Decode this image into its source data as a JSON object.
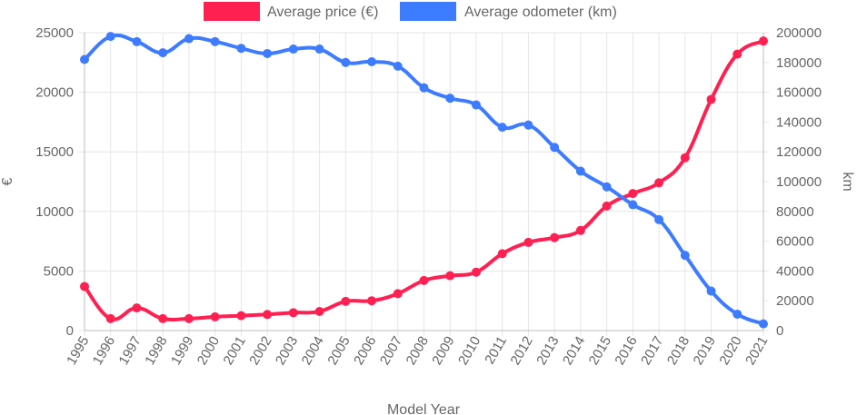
{
  "chart_data": {
    "type": "line",
    "title": "",
    "xlabel": "Model Year",
    "ylabel": "€",
    "y2label": "km",
    "categories": [
      "1995",
      "1996",
      "1997",
      "1998",
      "1999",
      "2000",
      "2001",
      "2002",
      "2003",
      "2004",
      "2005",
      "2006",
      "2007",
      "2008",
      "2009",
      "2010",
      "2011",
      "2012",
      "2013",
      "2014",
      "2015",
      "2016",
      "2017",
      "2018",
      "2019",
      "2020",
      "2021"
    ],
    "ylim": [
      0,
      25000
    ],
    "y2lim": [
      0,
      200000
    ],
    "yticks": [
      "0",
      "5000",
      "10000",
      "15000",
      "20000",
      "25000"
    ],
    "y2ticks": [
      "0",
      "20000",
      "40000",
      "60000",
      "80000",
      "100000",
      "120000",
      "140000",
      "160000",
      "180000",
      "200000"
    ],
    "legend_position": "top-center",
    "grid": true,
    "series": [
      {
        "name": "Average price (€)",
        "axis": "left",
        "color": "#ff2052",
        "values": [
          3700,
          1000,
          1900,
          1000,
          1000,
          1150,
          1250,
          1350,
          1500,
          1600,
          2450,
          2500,
          3100,
          4200,
          4600,
          4900,
          6450,
          7400,
          7800,
          8400,
          10450,
          11500,
          12400,
          14500,
          19400,
          23200,
          24300
        ]
      },
      {
        "name": "Average odometer (km)",
        "axis": "right",
        "color": "#3d7bff",
        "values": [
          182000,
          197500,
          194000,
          186500,
          196000,
          194000,
          189500,
          186000,
          189000,
          189000,
          180000,
          180500,
          177500,
          163000,
          156000,
          151500,
          136500,
          138000,
          123000,
          107000,
          96500,
          84500,
          74500,
          50500,
          26500,
          11000,
          4500
        ]
      }
    ]
  }
}
